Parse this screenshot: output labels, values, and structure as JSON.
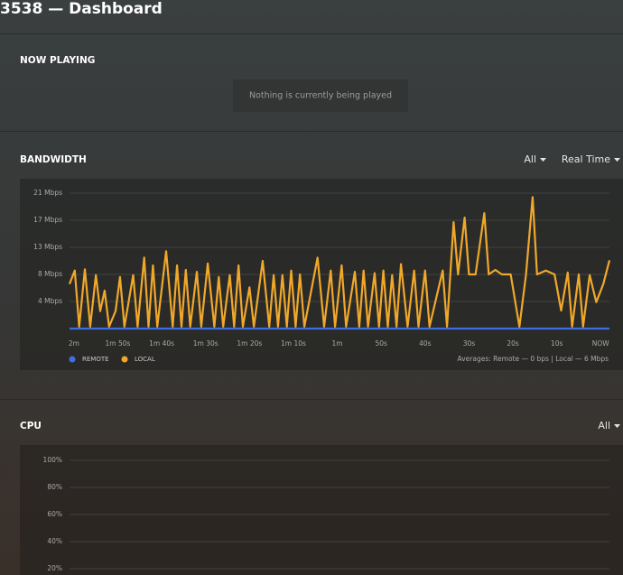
{
  "header": {
    "title": "3538 — Dashboard"
  },
  "now_playing": {
    "heading": "NOW PLAYING",
    "message": "Nothing is currently being played"
  },
  "chart_data": [
    {
      "type": "line",
      "title": "BANDWIDTH",
      "controls": [
        "All",
        "Real Time"
      ],
      "x": [
        -121,
        -119.8,
        -118.8,
        -117.5,
        -116.3,
        -115,
        -114,
        -113,
        -112,
        -110.5,
        -109.5,
        -108.5,
        -106.5,
        -105.5,
        -104,
        -103,
        -102,
        -101,
        -99,
        -97.5,
        -96.5,
        -95.5,
        -94.5,
        -93.5,
        -92,
        -91,
        -89.5,
        -88,
        -87,
        -86,
        -84.5,
        -83.5,
        -82.5,
        -81.5,
        -80,
        -79,
        -77,
        -75.5,
        -74.5,
        -73.5,
        -72.5,
        -71.5,
        -70.5,
        -69.5,
        -68.5,
        -67.5,
        -64.5,
        -63,
        -61.5,
        -60.5,
        -59,
        -58,
        -56,
        -55,
        -54,
        -53,
        -51.5,
        -50.5,
        -49.5,
        -48.5,
        -47.5,
        -46.5,
        -45.5,
        -44,
        -42.5,
        -41.5,
        -40,
        -39,
        -36,
        -35,
        -33.5,
        -32.5,
        -31,
        -30,
        -28.5,
        -26.5,
        -25.5,
        -24,
        -22.5,
        -20.5,
        -18.5,
        -17,
        -15.5,
        -14.5,
        -12.5,
        -10.5,
        -9,
        -7.5,
        -6.5,
        -5,
        -4,
        -2.5,
        -1,
        0.6,
        2
      ],
      "series": [
        {
          "name": "REMOTE",
          "color": "#3f6ee0",
          "x": [
            -121,
            2
          ],
          "values": [
            0,
            0
          ]
        },
        {
          "name": "LOCAL",
          "color": "#f0a82a",
          "values": [
            6.9,
            9.0,
            0.3,
            9.2,
            0.3,
            8.3,
            2.7,
            5.9,
            0.3,
            2.7,
            8.0,
            0.3,
            8.3,
            0.3,
            11.0,
            0.3,
            9.8,
            0.3,
            12.0,
            0.3,
            9.8,
            0.3,
            9.1,
            0.3,
            8.8,
            0.3,
            10.1,
            0.3,
            8.0,
            0.3,
            8.3,
            0.3,
            9.8,
            0.3,
            6.4,
            0.3,
            10.5,
            0.3,
            8.3,
            0.3,
            8.3,
            0.3,
            9.0,
            0.3,
            8.4,
            0.3,
            11.0,
            0.3,
            9.0,
            0.3,
            9.8,
            0.3,
            8.8,
            0.3,
            9.0,
            0.3,
            8.6,
            0.3,
            9.0,
            0.3,
            8.3,
            0.3,
            10.0,
            0.3,
            9.0,
            0.3,
            9.0,
            0.3,
            9.0,
            0.3,
            16.5,
            8.4,
            17.2,
            8.4,
            8.4,
            17.9,
            8.4,
            9.1,
            8.4,
            8.4,
            0.3,
            8.4,
            20.4,
            8.4,
            9.0,
            8.4,
            2.8,
            8.7,
            0.3,
            8.4,
            0.3,
            8.3,
            4.1,
            6.9,
            10.6
          ]
        }
      ],
      "xlim": [
        -121,
        2
      ],
      "xticks": [
        {
          "value": -120,
          "label": "2m"
        },
        {
          "value": -110,
          "label": "1m 50s"
        },
        {
          "value": -100,
          "label": "1m 40s"
        },
        {
          "value": -90,
          "label": "1m 30s"
        },
        {
          "value": -80,
          "label": "1m 20s"
        },
        {
          "value": -70,
          "label": "1m 10s"
        },
        {
          "value": -60,
          "label": "1m"
        },
        {
          "value": -50,
          "label": "50s"
        },
        {
          "value": -40,
          "label": "40s"
        },
        {
          "value": -30,
          "label": "30s"
        },
        {
          "value": -20,
          "label": "20s"
        },
        {
          "value": -10,
          "label": "10s"
        },
        {
          "value": 0,
          "label": "NOW"
        }
      ],
      "ylim": [
        0,
        21
      ],
      "yticks": [
        {
          "value": 4.2,
          "label": "4 Mbps"
        },
        {
          "value": 8.4,
          "label": "8 Mbps"
        },
        {
          "value": 12.6,
          "label": "13 Mbps"
        },
        {
          "value": 16.8,
          "label": "17 Mbps"
        },
        {
          "value": 21,
          "label": "21 Mbps"
        }
      ],
      "grid": true,
      "note": "Averages: Remote — 0 bps | Local — 6 Mbps"
    },
    {
      "type": "line",
      "title": "CPU",
      "controls": [
        "All"
      ],
      "ylim": [
        0,
        100
      ],
      "yticks": [
        {
          "value": 20,
          "label": "20%"
        },
        {
          "value": 40,
          "label": "40%"
        },
        {
          "value": 60,
          "label": "60%"
        },
        {
          "value": 80,
          "label": "80%"
        },
        {
          "value": 100,
          "label": "100%"
        }
      ],
      "grid": true
    }
  ]
}
